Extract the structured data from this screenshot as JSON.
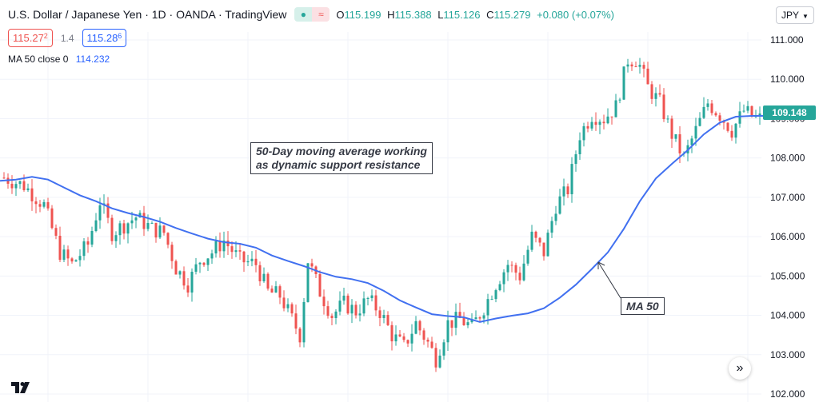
{
  "header": {
    "title": "U.S. Dollar / Japanese Yen · 1D · OANDA · TradingView",
    "status_a": "●",
    "status_b": "≈",
    "ohlc": {
      "o_label": "O",
      "o": "115.199",
      "h_label": "H",
      "h": "115.388",
      "l_label": "L",
      "l": "115.126",
      "c_label": "C",
      "c": "115.279",
      "change": "+0.080 (+0.07%)"
    }
  },
  "trade": {
    "sell_main": "115.27",
    "sell_sup": "2",
    "spread": "1.4",
    "buy_main": "115.28",
    "buy_sup": "6"
  },
  "indicator": {
    "label": "MA 50 close 0",
    "value": "114.232"
  },
  "currency_button": "JPY",
  "current_price": "109.148",
  "annotations": {
    "main_line1": "50-Day moving average working",
    "main_line2": "as dynamic support resistance",
    "ma_label": "MA 50"
  },
  "chart_data": {
    "type": "candlestick",
    "symbol": "USDJPY",
    "interval": "1D",
    "ylim": [
      102.0,
      111.0
    ],
    "y_ticks": [
      "111.000",
      "110.000",
      "109.000",
      "108.000",
      "107.000",
      "106.000",
      "105.000",
      "104.000",
      "103.000",
      "102.000"
    ],
    "colors": {
      "up": "#26a69a",
      "down": "#ef5350",
      "ma": "#4170f0",
      "grid": "#f0f3fa"
    },
    "ma_series": {
      "name": "MA 50",
      "values": [
        [
          0,
          107.42
        ],
        [
          20,
          107.45
        ],
        [
          40,
          107.52
        ],
        [
          60,
          107.45
        ],
        [
          80,
          107.25
        ],
        [
          100,
          107.05
        ],
        [
          120,
          106.9
        ],
        [
          140,
          106.72
        ],
        [
          160,
          106.6
        ],
        [
          180,
          106.5
        ],
        [
          200,
          106.38
        ],
        [
          220,
          106.22
        ],
        [
          240,
          106.08
        ],
        [
          260,
          105.95
        ],
        [
          280,
          105.86
        ],
        [
          300,
          105.82
        ],
        [
          320,
          105.72
        ],
        [
          340,
          105.52
        ],
        [
          360,
          105.38
        ],
        [
          380,
          105.25
        ],
        [
          400,
          105.1
        ],
        [
          420,
          104.98
        ],
        [
          440,
          104.92
        ],
        [
          460,
          104.82
        ],
        [
          480,
          104.62
        ],
        [
          500,
          104.38
        ],
        [
          520,
          104.2
        ],
        [
          540,
          104.03
        ],
        [
          560,
          103.98
        ],
        [
          580,
          103.95
        ],
        [
          600,
          103.83
        ],
        [
          620,
          103.92
        ],
        [
          640,
          103.99
        ],
        [
          660,
          104.05
        ],
        [
          680,
          104.18
        ],
        [
          700,
          104.45
        ],
        [
          720,
          104.78
        ],
        [
          740,
          105.18
        ],
        [
          760,
          105.6
        ],
        [
          780,
          106.2
        ],
        [
          800,
          106.9
        ],
        [
          820,
          107.48
        ],
        [
          840,
          107.85
        ],
        [
          860,
          108.2
        ],
        [
          880,
          108.6
        ],
        [
          900,
          108.9
        ],
        [
          920,
          109.05
        ],
        [
          940,
          109.07
        ],
        [
          955,
          109.07
        ]
      ]
    },
    "ohlc_points": [
      [
        5,
        107.5
      ],
      [
        30,
        107.3
      ],
      [
        55,
        106.8
      ],
      [
        75,
        105.6
      ],
      [
        90,
        105.3
      ],
      [
        110,
        105.8
      ],
      [
        125,
        106.9
      ],
      [
        140,
        106.1
      ],
      [
        155,
        106.3
      ],
      [
        170,
        106.5
      ],
      [
        190,
        106.2
      ],
      [
        205,
        106.1
      ],
      [
        220,
        105.2
      ],
      [
        235,
        104.8
      ],
      [
        250,
        105.4
      ],
      [
        265,
        105.6
      ],
      [
        280,
        105.9
      ],
      [
        300,
        105.4
      ],
      [
        320,
        105.3
      ],
      [
        335,
        104.6
      ],
      [
        350,
        104.5
      ],
      [
        365,
        103.9
      ],
      [
        375,
        103.5
      ],
      [
        385,
        105.4
      ],
      [
        400,
        104.6
      ],
      [
        415,
        104.0
      ],
      [
        430,
        104.3
      ],
      [
        445,
        104.1
      ],
      [
        460,
        104.4
      ],
      [
        475,
        104.1
      ],
      [
        490,
        103.5
      ],
      [
        505,
        103.2
      ],
      [
        520,
        103.8
      ],
      [
        535,
        103.3
      ],
      [
        545,
        102.9
      ],
      [
        560,
        103.8
      ],
      [
        575,
        103.9
      ],
      [
        590,
        103.7
      ],
      [
        605,
        104.2
      ],
      [
        620,
        104.8
      ],
      [
        635,
        105.3
      ],
      [
        650,
        105.0
      ],
      [
        665,
        106.0
      ],
      [
        680,
        105.6
      ],
      [
        695,
        106.8
      ],
      [
        710,
        107.2
      ],
      [
        725,
        108.6
      ],
      [
        740,
        109.1
      ],
      [
        755,
        109.0
      ],
      [
        770,
        109.3
      ],
      [
        785,
        110.5
      ],
      [
        797,
        110.5
      ],
      [
        810,
        109.8
      ],
      [
        825,
        109.4
      ],
      [
        840,
        108.6
      ],
      [
        855,
        108.0
      ],
      [
        870,
        108.7
      ],
      [
        885,
        109.4
      ],
      [
        900,
        109.1
      ],
      [
        915,
        108.7
      ],
      [
        930,
        109.2
      ],
      [
        945,
        109.0
      ]
    ]
  }
}
